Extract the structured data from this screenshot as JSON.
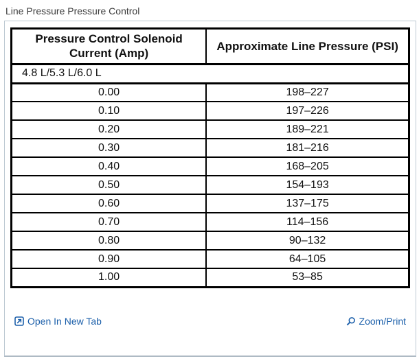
{
  "page": {
    "title": "Line Pressure Pressure Control"
  },
  "table": {
    "headers": [
      "Pressure Control Solenoid Current (Amp)",
      "Approximate Line Pressure (PSI)"
    ],
    "subheader": "4.8 L/5.3 L/6.0 L",
    "rows": [
      [
        "0.00",
        "198–227"
      ],
      [
        "0.10",
        "197–226"
      ],
      [
        "0.20",
        "189–221"
      ],
      [
        "0.30",
        "181–216"
      ],
      [
        "0.40",
        "168–205"
      ],
      [
        "0.50",
        "154–193"
      ],
      [
        "0.60",
        "137–175"
      ],
      [
        "0.70",
        "114–156"
      ],
      [
        "0.80",
        "90–132"
      ],
      [
        "0.90",
        "64–105"
      ],
      [
        "1.00",
        "53–85"
      ]
    ]
  },
  "footer": {
    "open_in_new_tab_label": "Open In New Tab",
    "zoom_print_label": "Zoom/Print",
    "icons": {
      "open_in_new_tab": "open-in-new-tab-icon",
      "zoom_print": "magnifier-icon"
    }
  },
  "colors": {
    "link_blue": "#1b5faa",
    "table_border": "#000000",
    "panel_border": "#bcc8d2",
    "title_text": "#3c3c3c"
  }
}
